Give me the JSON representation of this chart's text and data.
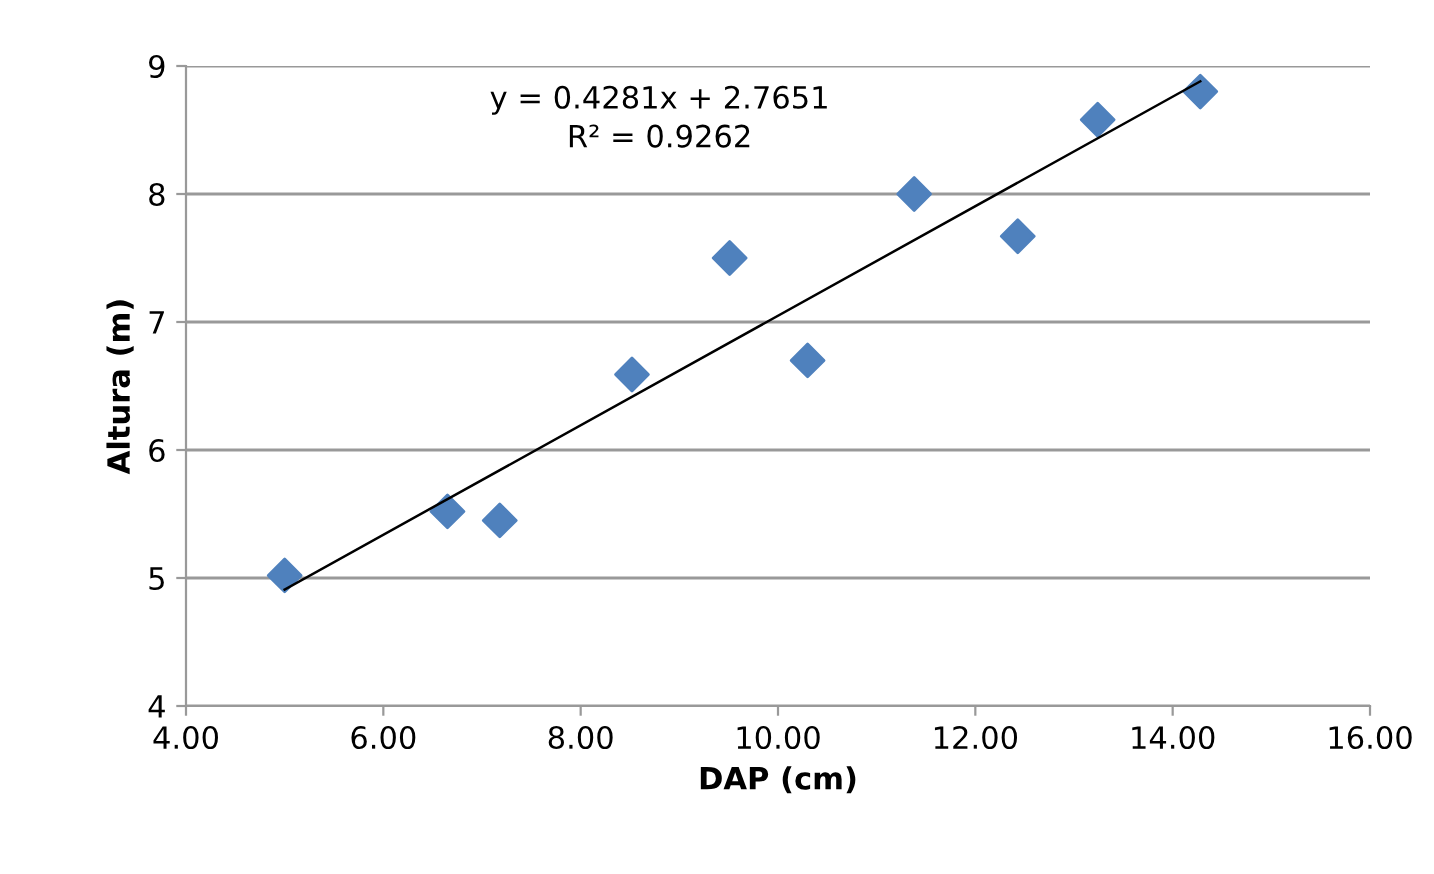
{
  "chart_data": {
    "type": "scatter",
    "xlabel": "DAP (cm)",
    "ylabel": "Altura (m)",
    "series": [
      {
        "color": "#4f81bd",
        "marker": "diamond",
        "x": [
          5.0,
          6.65,
          7.18,
          8.52,
          9.51,
          10.3,
          11.38,
          12.43,
          13.24,
          14.28
        ],
        "values": [
          5.02,
          5.52,
          5.45,
          6.59,
          7.5,
          6.7,
          8.0,
          7.67,
          8.58,
          8.8
        ]
      },
      {
        "type": "line",
        "color": "#000000",
        "marker": "none",
        "x": [
          5.0,
          14.28
        ],
        "values": [
          4.91,
          8.88
        ]
      }
    ],
    "annotations": [
      "y = 0.4281x + 2.7651",
      "R² = 0.9262"
    ],
    "xlim": [
      4,
      16
    ],
    "xticks": [
      {
        "value": 4,
        "label": "4.00"
      },
      {
        "value": 6,
        "label": "6.00"
      },
      {
        "value": 8,
        "label": "8.00"
      },
      {
        "value": 10,
        "label": "10.00"
      },
      {
        "value": 12,
        "label": "12.00"
      },
      {
        "value": 14,
        "label": "14.00"
      },
      {
        "value": 16,
        "label": "16.00"
      }
    ],
    "ylim": [
      4,
      9
    ],
    "yticks": [
      4,
      5,
      6,
      7,
      8,
      9
    ],
    "grid": "y",
    "legend": false
  }
}
